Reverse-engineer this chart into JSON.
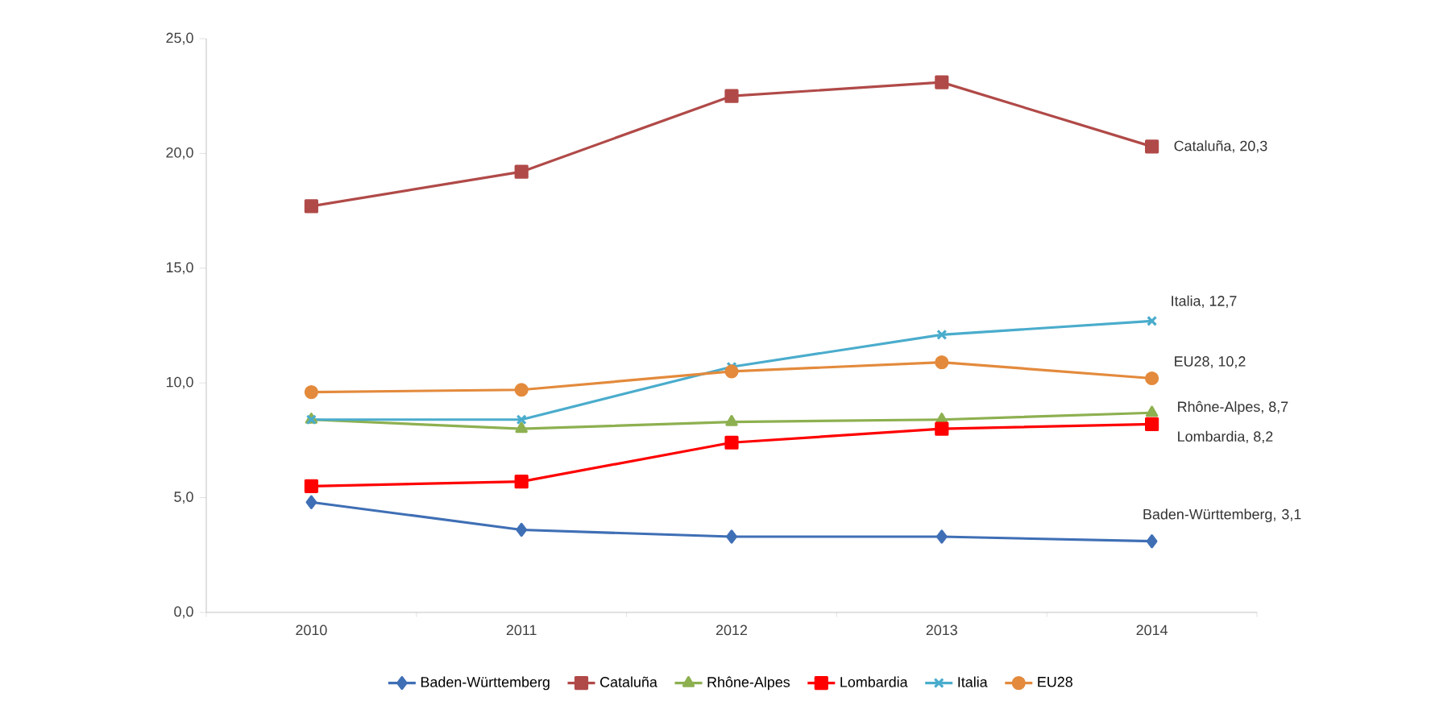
{
  "chart_data": {
    "type": "line",
    "categories": [
      "2010",
      "2011",
      "2012",
      "2013",
      "2014"
    ],
    "series": [
      {
        "name": "Baden-Württemberg",
        "color": "#3f6fb5",
        "marker": "diamond",
        "values": [
          4.8,
          3.6,
          3.3,
          3.3,
          3.1
        ]
      },
      {
        "name": "Cataluña",
        "color": "#b04a48",
        "marker": "square",
        "values": [
          17.7,
          19.2,
          22.5,
          23.1,
          20.3
        ]
      },
      {
        "name": "Rhône-Alpes",
        "color": "#8db050",
        "marker": "triangle",
        "values": [
          8.4,
          8.0,
          8.3,
          8.4,
          8.7
        ]
      },
      {
        "name": "Lombardia",
        "color": "#ff0000",
        "marker": "square",
        "values": [
          5.5,
          5.7,
          7.4,
          8.0,
          8.2
        ]
      },
      {
        "name": "Italia",
        "color": "#4aaccc",
        "marker": "cross",
        "values": [
          8.4,
          8.4,
          10.7,
          12.1,
          12.7
        ]
      },
      {
        "name": "EU28",
        "color": "#e38a3c",
        "marker": "circle",
        "values": [
          9.6,
          9.7,
          10.5,
          10.9,
          10.2
        ]
      }
    ],
    "ylim": [
      0,
      25
    ],
    "yticks": [
      {
        "value": 0,
        "label": "0,0"
      },
      {
        "value": 5,
        "label": "5,0"
      },
      {
        "value": 10,
        "label": "10,0"
      },
      {
        "value": 15,
        "label": "15,0"
      },
      {
        "value": 20,
        "label": "20,0"
      },
      {
        "value": 25,
        "label": "25,0"
      }
    ],
    "annotations": [
      {
        "text": "Cataluña, 20,3",
        "x": "2014",
        "y": 20.3
      },
      {
        "text": "Italia, 12,7",
        "x": "2014",
        "y": 12.7
      },
      {
        "text": "EU28, 10,2",
        "x": "2014",
        "y": 10.2
      },
      {
        "text": "Rhône-Alpes, 8,7",
        "x": "2014",
        "y": 8.7
      },
      {
        "text": "Lombardia, 8,2",
        "x": "2014",
        "y": 8.2
      },
      {
        "text": "Baden-Württemberg, 3,1",
        "x": "2014",
        "y": 3.1
      }
    ],
    "legend": "bottom",
    "line_style": "solid",
    "grid": false
  }
}
